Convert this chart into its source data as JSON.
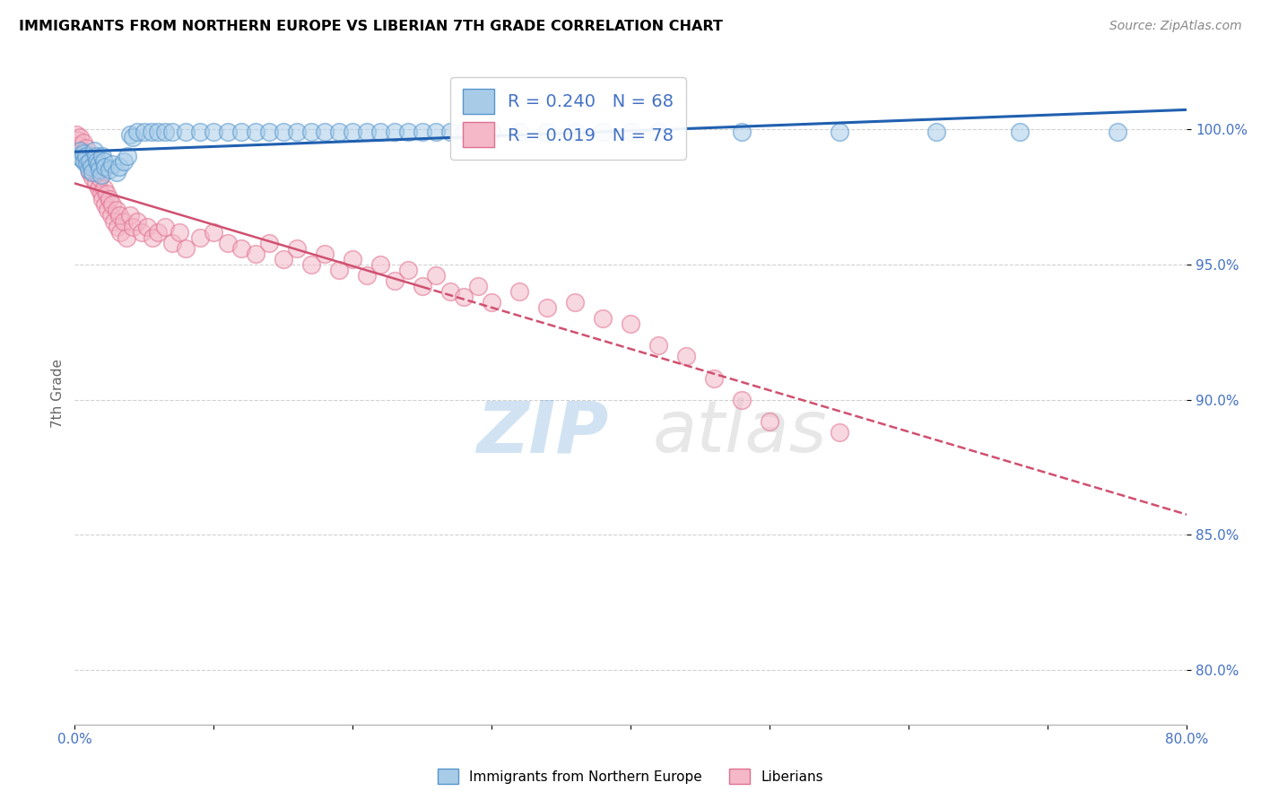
{
  "title": "IMMIGRANTS FROM NORTHERN EUROPE VS LIBERIAN 7TH GRADE CORRELATION CHART",
  "source": "Source: ZipAtlas.com",
  "ylabel": "7th Grade",
  "x_tick_labels": [
    "0.0%",
    "",
    "",
    "",
    "",
    "",
    "",
    "",
    "80.0%"
  ],
  "y_tick_labels": [
    "80.0%",
    "85.0%",
    "90.0%",
    "95.0%",
    "100.0%"
  ],
  "xlim": [
    0.0,
    0.8
  ],
  "ylim": [
    0.78,
    1.025
  ],
  "legend_blue_label": "Immigrants from Northern Europe",
  "legend_pink_label": "Liberians",
  "R_blue": 0.24,
  "N_blue": 68,
  "R_pink": 0.019,
  "N_pink": 78,
  "blue_color": "#a8cce8",
  "pink_color": "#f4b8c8",
  "blue_edge_color": "#5595cc",
  "pink_edge_color": "#e07090",
  "blue_line_color": "#2060b0",
  "pink_line_color": "#d05070",
  "watermark_zip": "ZIP",
  "watermark_atlas": "atlas",
  "blue_scatter_x": [
    0.003,
    0.004,
    0.005,
    0.006,
    0.007,
    0.008,
    0.009,
    0.01,
    0.011,
    0.012,
    0.013,
    0.014,
    0.015,
    0.016,
    0.017,
    0.018,
    0.019,
    0.02,
    0.021,
    0.022,
    0.025,
    0.027,
    0.03,
    0.032,
    0.035,
    0.038,
    0.04,
    0.042,
    0.045,
    0.05,
    0.055,
    0.06,
    0.065,
    0.07,
    0.08,
    0.09,
    0.1,
    0.11,
    0.12,
    0.13,
    0.14,
    0.15,
    0.16,
    0.17,
    0.18,
    0.19,
    0.2,
    0.21,
    0.22,
    0.23,
    0.24,
    0.25,
    0.26,
    0.27,
    0.28,
    0.29,
    0.3,
    0.32,
    0.34,
    0.36,
    0.38,
    0.4,
    0.42,
    0.48,
    0.55,
    0.62,
    0.68,
    0.75
  ],
  "blue_scatter_y": [
    0.99,
    0.992,
    0.989,
    0.991,
    0.988,
    0.99,
    0.987,
    0.985,
    0.988,
    0.986,
    0.984,
    0.992,
    0.99,
    0.988,
    0.987,
    0.985,
    0.983,
    0.99,
    0.988,
    0.986,
    0.985,
    0.987,
    0.984,
    0.986,
    0.988,
    0.99,
    0.998,
    0.997,
    0.999,
    0.999,
    0.999,
    0.999,
    0.999,
    0.999,
    0.999,
    0.999,
    0.999,
    0.999,
    0.999,
    0.999,
    0.999,
    0.999,
    0.999,
    0.999,
    0.999,
    0.999,
    0.999,
    0.999,
    0.999,
    0.999,
    0.999,
    0.999,
    0.999,
    0.999,
    0.999,
    0.999,
    0.999,
    0.999,
    0.999,
    0.999,
    0.999,
    0.999,
    0.999,
    0.999,
    0.999,
    0.999,
    0.999,
    0.999
  ],
  "pink_scatter_x": [
    0.001,
    0.002,
    0.003,
    0.004,
    0.005,
    0.006,
    0.007,
    0.008,
    0.009,
    0.01,
    0.011,
    0.012,
    0.013,
    0.014,
    0.015,
    0.016,
    0.017,
    0.018,
    0.019,
    0.02,
    0.021,
    0.022,
    0.023,
    0.024,
    0.025,
    0.026,
    0.027,
    0.028,
    0.03,
    0.031,
    0.032,
    0.033,
    0.035,
    0.037,
    0.04,
    0.042,
    0.045,
    0.048,
    0.052,
    0.056,
    0.06,
    0.065,
    0.07,
    0.075,
    0.08,
    0.09,
    0.1,
    0.11,
    0.12,
    0.13,
    0.14,
    0.15,
    0.16,
    0.17,
    0.18,
    0.19,
    0.2,
    0.21,
    0.22,
    0.23,
    0.24,
    0.25,
    0.26,
    0.27,
    0.28,
    0.29,
    0.3,
    0.32,
    0.34,
    0.36,
    0.38,
    0.4,
    0.42,
    0.44,
    0.46,
    0.48,
    0.5,
    0.55
  ],
  "pink_scatter_y": [
    0.998,
    0.996,
    0.994,
    0.997,
    0.992,
    0.995,
    0.99,
    0.993,
    0.988,
    0.986,
    0.984,
    0.988,
    0.982,
    0.986,
    0.98,
    0.984,
    0.978,
    0.982,
    0.976,
    0.974,
    0.978,
    0.972,
    0.976,
    0.97,
    0.974,
    0.968,
    0.972,
    0.966,
    0.97,
    0.964,
    0.968,
    0.962,
    0.966,
    0.96,
    0.968,
    0.964,
    0.966,
    0.962,
    0.964,
    0.96,
    0.962,
    0.964,
    0.958,
    0.962,
    0.956,
    0.96,
    0.962,
    0.958,
    0.956,
    0.954,
    0.958,
    0.952,
    0.956,
    0.95,
    0.954,
    0.948,
    0.952,
    0.946,
    0.95,
    0.944,
    0.948,
    0.942,
    0.946,
    0.94,
    0.938,
    0.942,
    0.936,
    0.94,
    0.934,
    0.936,
    0.93,
    0.928,
    0.92,
    0.916,
    0.908,
    0.9,
    0.892,
    0.888
  ]
}
